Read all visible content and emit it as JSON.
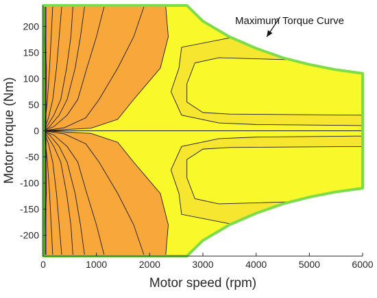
{
  "chart_data": {
    "type": "heatmap",
    "title": "",
    "xlabel": "Motor speed (rpm)",
    "ylabel": "Motor torque (Nm)",
    "xlim": [
      0,
      6000
    ],
    "ylim": [
      -240,
      240
    ],
    "x_ticks": [
      0,
      1000,
      2000,
      3000,
      4000,
      5000,
      6000
    ],
    "y_ticks": [
      200,
      150,
      100,
      50,
      0,
      -50,
      -100,
      -150,
      -200
    ],
    "grid": false,
    "legend": "none",
    "annotation": {
      "text": "Maximum Torque Curve",
      "arrow_from": [
        4450,
        218
      ],
      "arrow_to": [
        4200,
        180
      ]
    },
    "max_torque_curve": {
      "color": "#7ddc4a",
      "x": [
        0,
        2700,
        3000,
        3500,
        4000,
        4500,
        5000,
        5500,
        6000
      ],
      "y": [
        240,
        240,
        210,
        180,
        158,
        140,
        127,
        117,
        110
      ]
    },
    "colormap": [
      "#352a87",
      "#3e4fd6",
      "#1e8fd8",
      "#17b3b0",
      "#4cc28a",
      "#a4bf47",
      "#d8b534",
      "#f8a83a",
      "#f8c23a",
      "#f3d53a",
      "#f6e62f",
      "#f9f82a"
    ],
    "contour_levels": [
      {
        "level": 1,
        "color": "#3e4fd6",
        "x": [
          0,
          60,
          50,
          20,
          0
        ],
        "y": [
          240,
          120,
          20,
          5,
          0
        ]
      },
      {
        "level": 2,
        "color": "#1e8fd8",
        "x": [
          180,
          150,
          120,
          80,
          30,
          0
        ],
        "y": [
          240,
          180,
          120,
          60,
          10,
          0
        ]
      },
      {
        "level": 3,
        "color": "#17b3b0",
        "x": [
          350,
          300,
          250,
          180,
          100,
          40,
          0
        ],
        "y": [
          240,
          180,
          120,
          60,
          25,
          8,
          0
        ]
      },
      {
        "level": 4,
        "color": "#4cc28a",
        "x": [
          560,
          520,
          440,
          330,
          200,
          80,
          0
        ],
        "y": [
          240,
          180,
          120,
          60,
          30,
          10,
          0
        ]
      },
      {
        "level": 5,
        "color": "#a4bf47",
        "x": [
          780,
          700,
          600,
          450,
          300,
          120,
          0
        ],
        "y": [
          240,
          180,
          120,
          60,
          30,
          8,
          0
        ]
      },
      {
        "level": 6,
        "color": "#d8b534",
        "x": [
          1150,
          1000,
          820,
          650,
          450,
          200,
          0
        ],
        "y": [
          240,
          180,
          120,
          60,
          30,
          8,
          0
        ]
      },
      {
        "level": 7,
        "color": "#f8a83a",
        "x": [
          1900,
          1700,
          1400,
          1050,
          800,
          400,
          0
        ],
        "y": [
          240,
          180,
          120,
          60,
          25,
          6,
          0
        ]
      },
      {
        "level": 8,
        "color": "#f8c23a",
        "x": [
          2300,
          2350,
          2200,
          1700,
          1400,
          900,
          0
        ],
        "y": [
          240,
          180,
          120,
          60,
          22,
          5,
          0
        ]
      },
      {
        "level": 9,
        "color": "#f3d53a",
        "x": [
          6000,
          4000,
          3300,
          2600,
          2400,
          2550,
          2600,
          3500,
          6000
        ],
        "y": [
          10,
          12,
          15,
          30,
          75,
          120,
          160,
          178,
          162
        ]
      },
      {
        "level": 10,
        "color": "#f6e62f",
        "x": [
          6000,
          3500,
          3000,
          2700,
          2700,
          2850,
          3300,
          5000,
          6000
        ],
        "y": [
          30,
          32,
          35,
          55,
          90,
          130,
          140,
          135,
          132
        ]
      }
    ]
  }
}
